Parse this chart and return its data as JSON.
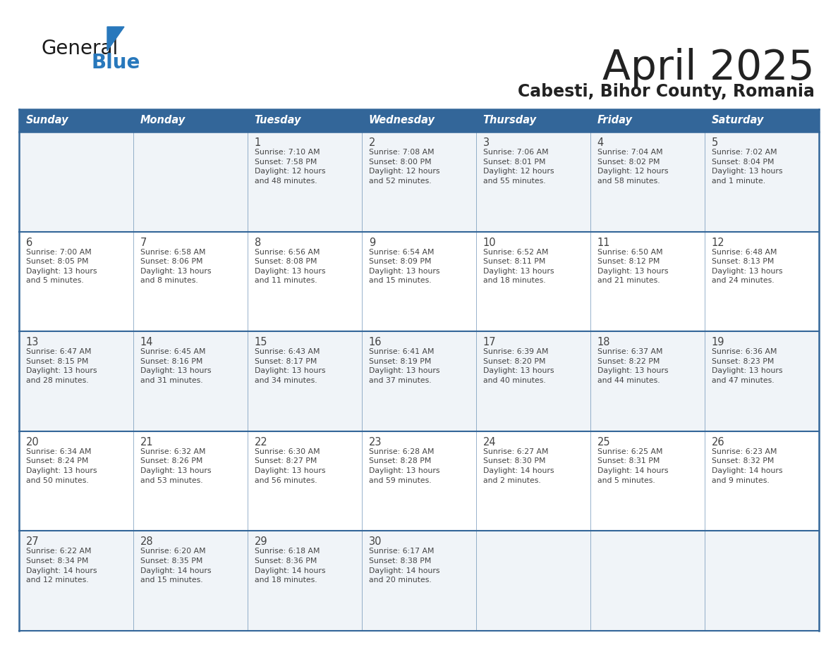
{
  "title": "April 2025",
  "subtitle": "Cabesti, Bihor County, Romania",
  "header_bg": "#336699",
  "header_text_color": "#ffffff",
  "cell_bg_odd": "#f0f4f8",
  "cell_bg_even": "#ffffff",
  "border_color": "#336699",
  "day_names": [
    "Sunday",
    "Monday",
    "Tuesday",
    "Wednesday",
    "Thursday",
    "Friday",
    "Saturday"
  ],
  "title_color": "#222222",
  "subtitle_color": "#222222",
  "text_color": "#444444",
  "logo_general_color": "#1a1a1a",
  "logo_blue_color": "#2878bc",
  "weeks": [
    [
      {
        "day": "",
        "info": ""
      },
      {
        "day": "",
        "info": ""
      },
      {
        "day": "1",
        "info": "Sunrise: 7:10 AM\nSunset: 7:58 PM\nDaylight: 12 hours\nand 48 minutes."
      },
      {
        "day": "2",
        "info": "Sunrise: 7:08 AM\nSunset: 8:00 PM\nDaylight: 12 hours\nand 52 minutes."
      },
      {
        "day": "3",
        "info": "Sunrise: 7:06 AM\nSunset: 8:01 PM\nDaylight: 12 hours\nand 55 minutes."
      },
      {
        "day": "4",
        "info": "Sunrise: 7:04 AM\nSunset: 8:02 PM\nDaylight: 12 hours\nand 58 minutes."
      },
      {
        "day": "5",
        "info": "Sunrise: 7:02 AM\nSunset: 8:04 PM\nDaylight: 13 hours\nand 1 minute."
      }
    ],
    [
      {
        "day": "6",
        "info": "Sunrise: 7:00 AM\nSunset: 8:05 PM\nDaylight: 13 hours\nand 5 minutes."
      },
      {
        "day": "7",
        "info": "Sunrise: 6:58 AM\nSunset: 8:06 PM\nDaylight: 13 hours\nand 8 minutes."
      },
      {
        "day": "8",
        "info": "Sunrise: 6:56 AM\nSunset: 8:08 PM\nDaylight: 13 hours\nand 11 minutes."
      },
      {
        "day": "9",
        "info": "Sunrise: 6:54 AM\nSunset: 8:09 PM\nDaylight: 13 hours\nand 15 minutes."
      },
      {
        "day": "10",
        "info": "Sunrise: 6:52 AM\nSunset: 8:11 PM\nDaylight: 13 hours\nand 18 minutes."
      },
      {
        "day": "11",
        "info": "Sunrise: 6:50 AM\nSunset: 8:12 PM\nDaylight: 13 hours\nand 21 minutes."
      },
      {
        "day": "12",
        "info": "Sunrise: 6:48 AM\nSunset: 8:13 PM\nDaylight: 13 hours\nand 24 minutes."
      }
    ],
    [
      {
        "day": "13",
        "info": "Sunrise: 6:47 AM\nSunset: 8:15 PM\nDaylight: 13 hours\nand 28 minutes."
      },
      {
        "day": "14",
        "info": "Sunrise: 6:45 AM\nSunset: 8:16 PM\nDaylight: 13 hours\nand 31 minutes."
      },
      {
        "day": "15",
        "info": "Sunrise: 6:43 AM\nSunset: 8:17 PM\nDaylight: 13 hours\nand 34 minutes."
      },
      {
        "day": "16",
        "info": "Sunrise: 6:41 AM\nSunset: 8:19 PM\nDaylight: 13 hours\nand 37 minutes."
      },
      {
        "day": "17",
        "info": "Sunrise: 6:39 AM\nSunset: 8:20 PM\nDaylight: 13 hours\nand 40 minutes."
      },
      {
        "day": "18",
        "info": "Sunrise: 6:37 AM\nSunset: 8:22 PM\nDaylight: 13 hours\nand 44 minutes."
      },
      {
        "day": "19",
        "info": "Sunrise: 6:36 AM\nSunset: 8:23 PM\nDaylight: 13 hours\nand 47 minutes."
      }
    ],
    [
      {
        "day": "20",
        "info": "Sunrise: 6:34 AM\nSunset: 8:24 PM\nDaylight: 13 hours\nand 50 minutes."
      },
      {
        "day": "21",
        "info": "Sunrise: 6:32 AM\nSunset: 8:26 PM\nDaylight: 13 hours\nand 53 minutes."
      },
      {
        "day": "22",
        "info": "Sunrise: 6:30 AM\nSunset: 8:27 PM\nDaylight: 13 hours\nand 56 minutes."
      },
      {
        "day": "23",
        "info": "Sunrise: 6:28 AM\nSunset: 8:28 PM\nDaylight: 13 hours\nand 59 minutes."
      },
      {
        "day": "24",
        "info": "Sunrise: 6:27 AM\nSunset: 8:30 PM\nDaylight: 14 hours\nand 2 minutes."
      },
      {
        "day": "25",
        "info": "Sunrise: 6:25 AM\nSunset: 8:31 PM\nDaylight: 14 hours\nand 5 minutes."
      },
      {
        "day": "26",
        "info": "Sunrise: 6:23 AM\nSunset: 8:32 PM\nDaylight: 14 hours\nand 9 minutes."
      }
    ],
    [
      {
        "day": "27",
        "info": "Sunrise: 6:22 AM\nSunset: 8:34 PM\nDaylight: 14 hours\nand 12 minutes."
      },
      {
        "day": "28",
        "info": "Sunrise: 6:20 AM\nSunset: 8:35 PM\nDaylight: 14 hours\nand 15 minutes."
      },
      {
        "day": "29",
        "info": "Sunrise: 6:18 AM\nSunset: 8:36 PM\nDaylight: 14 hours\nand 18 minutes."
      },
      {
        "day": "30",
        "info": "Sunrise: 6:17 AM\nSunset: 8:38 PM\nDaylight: 14 hours\nand 20 minutes."
      },
      {
        "day": "",
        "info": ""
      },
      {
        "day": "",
        "info": ""
      },
      {
        "day": "",
        "info": ""
      }
    ]
  ]
}
